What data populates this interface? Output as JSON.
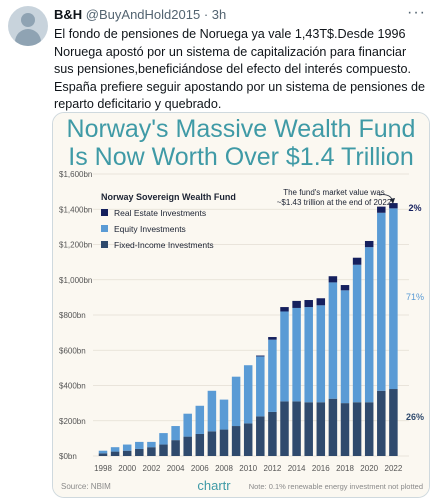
{
  "tweet": {
    "display_name": "B&H",
    "handle": "@BuyAndHold2015",
    "separator": "·",
    "time": "3h",
    "more_label": "···",
    "text": "El fondo de pensiones de Noruega ya vale 1,43T$.Desde 1996 Noruega apostó por un sistema de capitalización para financiar sus pensiones,beneficiándose del efecto del interés compuesto. España prefiere seguir apostando por un sistema de pensiones de reparto deficitario y quebrado."
  },
  "chart": {
    "title_line1": "Norway's Massive Wealth Fund",
    "title_line2": "Is Now Worth Over $1.4 Trillion",
    "annotation_line1": "The fund's market value was",
    "annotation_line2": "~$1.43 trillion at the end of 2022",
    "pct_real_estate": "2%",
    "pct_equity": "71%",
    "pct_fixed": "26%",
    "source": "Source: NBIM",
    "brand": "chartr",
    "note": "Note: 0.1% renewable energy investment not plotted"
  },
  "colors": {
    "real_estate": "#15205e",
    "equity": "#5a9bd5",
    "fixed_income": "#2f4a6d",
    "title": "#3f9aa6",
    "background": "#fbf8f1"
  },
  "chart_data": {
    "type": "bar",
    "stacked": true,
    "legend_title": "Norway Sovereign Wealth Fund",
    "categories": [
      "1998",
      "1999",
      "2000",
      "2001",
      "2002",
      "2003",
      "2004",
      "2005",
      "2006",
      "2007",
      "2008",
      "2009",
      "2010",
      "2011",
      "2012",
      "2013",
      "2014",
      "2015",
      "2016",
      "2017",
      "2018",
      "2019",
      "2020",
      "2021",
      "2022"
    ],
    "x_tick_labels": [
      "1998",
      "2000",
      "2002",
      "2004",
      "2006",
      "2008",
      "2010",
      "2012",
      "2014",
      "2016",
      "2018",
      "2020",
      "2022"
    ],
    "series": [
      {
        "name": "Fixed-Income Investments",
        "values": [
          15,
          25,
          30,
          40,
          50,
          65,
          90,
          110,
          125,
          140,
          150,
          170,
          185,
          225,
          250,
          310,
          310,
          305,
          305,
          325,
          300,
          305,
          305,
          370,
          380
        ]
      },
      {
        "name": "Equity Investments",
        "values": [
          15,
          25,
          35,
          40,
          30,
          65,
          80,
          130,
          160,
          230,
          170,
          280,
          330,
          340,
          410,
          510,
          530,
          540,
          550,
          660,
          640,
          780,
          880,
          1010,
          1025
        ]
      },
      {
        "name": "Real Estate Investments",
        "values": [
          0,
          0,
          0,
          0,
          0,
          0,
          0,
          0,
          0,
          0,
          0,
          0,
          0,
          5,
          15,
          25,
          40,
          40,
          40,
          35,
          30,
          40,
          35,
          35,
          30
        ]
      }
    ],
    "y_tick_labels": [
      "$0bn",
      "$200bn",
      "$400bn",
      "$600bn",
      "$800bn",
      "$1,000bn",
      "$1,200bn",
      "$1,400bn",
      "$1,600bn"
    ],
    "ylim": [
      0,
      1600
    ],
    "xlabel": "",
    "ylabel": ""
  }
}
